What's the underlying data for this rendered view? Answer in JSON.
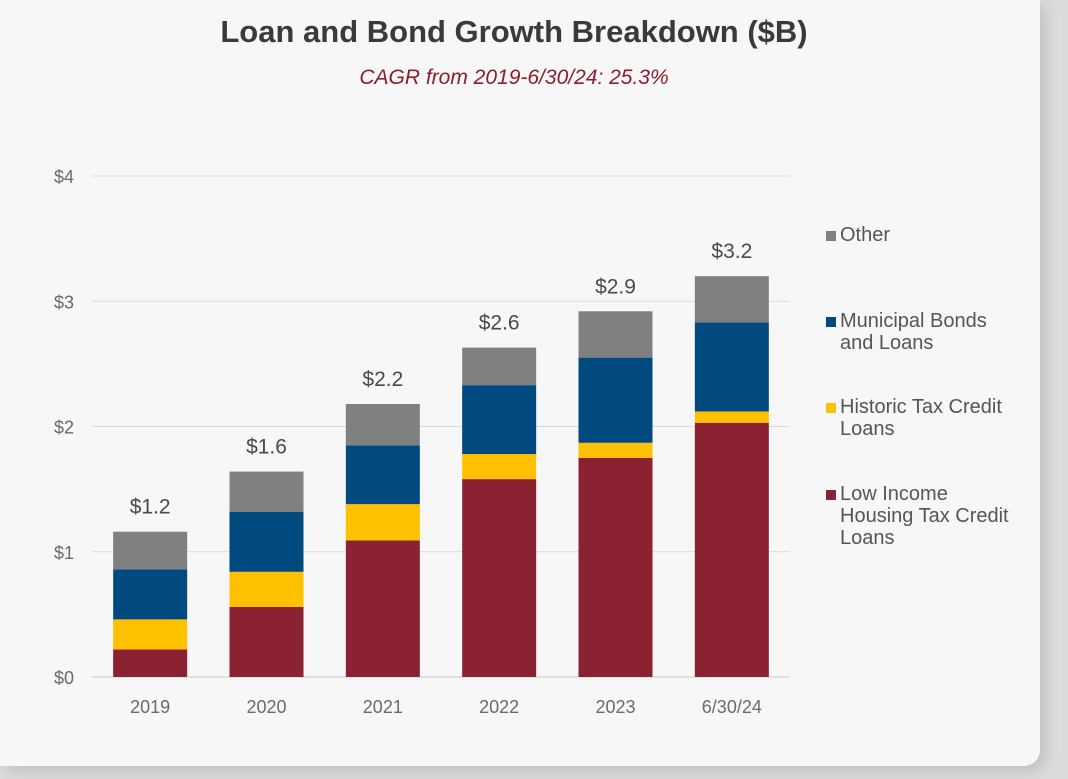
{
  "chart_data": {
    "type": "bar",
    "stacked": true,
    "title": "Loan and Bond Growth Breakdown ($B)",
    "subtitle": "CAGR from 2019-6/30/24: 25.3%",
    "categories": [
      "2019",
      "2020",
      "2021",
      "2022",
      "2023",
      "6/30/24"
    ],
    "ylim": [
      0,
      4
    ],
    "yticks": [
      0,
      1,
      2,
      3,
      4
    ],
    "ytick_labels": [
      "$0",
      "$1",
      "$2",
      "$3",
      "$4"
    ],
    "grid": true,
    "legend_position": "right",
    "series": [
      {
        "name": "Low Income Housing Tax Credit Loans",
        "color": "#8b2232",
        "values": [
          0.22,
          0.56,
          1.09,
          1.58,
          1.75,
          2.03
        ]
      },
      {
        "name": "Historic Tax Credit Loans",
        "color": "#ffc000",
        "values": [
          0.24,
          0.28,
          0.29,
          0.2,
          0.12,
          0.09
        ]
      },
      {
        "name": "Municipal Bonds and Loans",
        "color": "#004a7f",
        "values": [
          0.4,
          0.48,
          0.47,
          0.55,
          0.68,
          0.71
        ]
      },
      {
        "name": "Other",
        "color": "#808080",
        "values": [
          0.3,
          0.32,
          0.33,
          0.3,
          0.37,
          0.37
        ]
      }
    ],
    "totals": [
      1.16,
      1.64,
      2.18,
      2.63,
      2.92,
      3.2
    ],
    "total_labels": [
      "$1.2",
      "$1.6",
      "$2.2",
      "$2.6",
      "$2.9",
      "$3.2"
    ]
  }
}
